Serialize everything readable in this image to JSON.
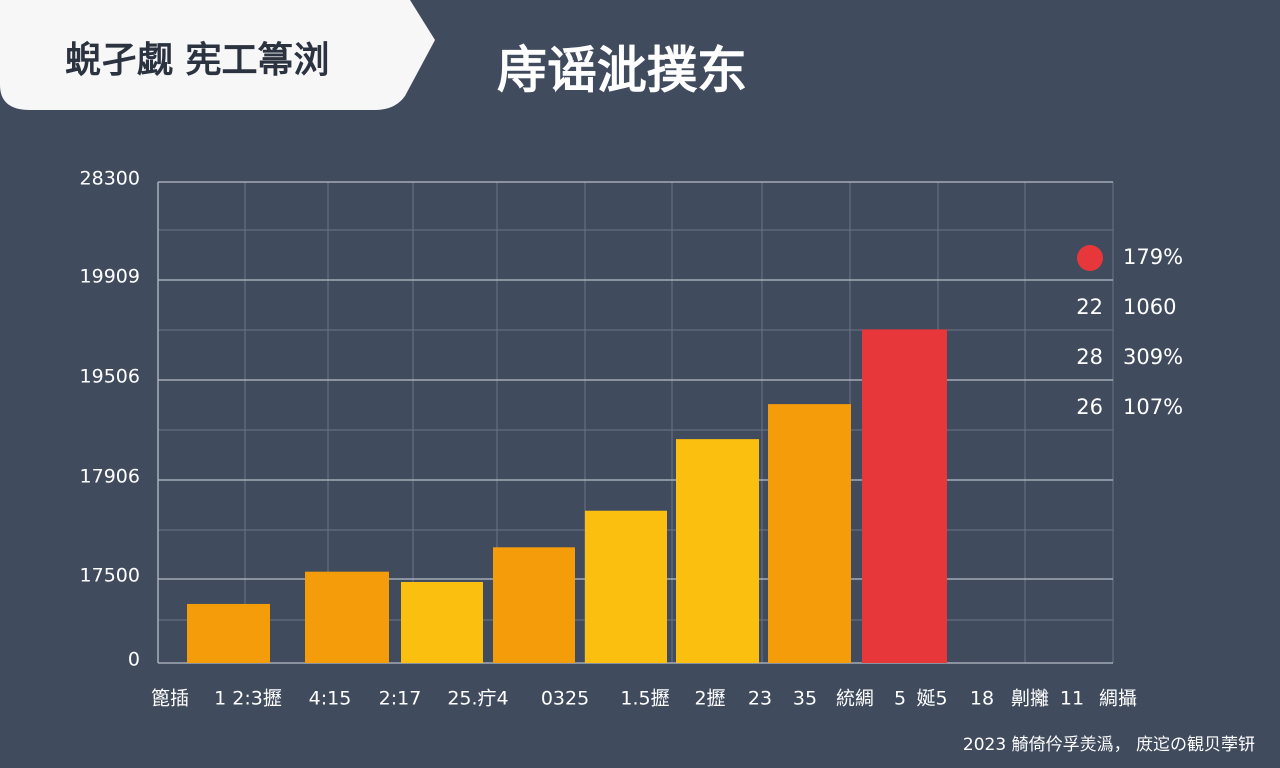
{
  "chart_data": {
    "type": "bar",
    "badge": "蜺孑觑 宪工箒浏",
    "title": "庤谣泚撲东",
    "categories": [
      null,
      null,
      null,
      null,
      null,
      null,
      null,
      null
    ],
    "values": [
      12300,
      17530,
      16880,
      17630,
      17780,
      18560,
      19120,
      19710
    ],
    "colors": [
      "#f59c0b",
      "#f59c0b",
      "#fbbf10",
      "#f59c0b",
      "#fbbf10",
      "#fbbf10",
      "#f59c0b",
      "#e8373a"
    ],
    "ylim": [
      0,
      28300
    ],
    "yticks": [
      0,
      17500,
      17906,
      19506,
      19909,
      28300
    ],
    "grid": true,
    "x_axis_labels": [
      "篦插",
      "1 2:3攊",
      "4:15",
      "2:17",
      "25.疔4",
      "0325",
      "1.5攊",
      "2攊",
      "23",
      "35",
      "統綢",
      "5",
      "娫5",
      "18",
      "劓攡",
      "11",
      "綢攝"
    ],
    "side_labels": [
      {
        "marker_color": "#e8373a",
        "value": "179%"
      },
      {
        "key": "22",
        "value": "1060"
      },
      {
        "key": "28",
        "value": "309%"
      },
      {
        "key": "26",
        "value": "107%"
      }
    ],
    "footer": "2023 觭倚仱孚羙潙， 庻迱の観贝荸钘"
  }
}
